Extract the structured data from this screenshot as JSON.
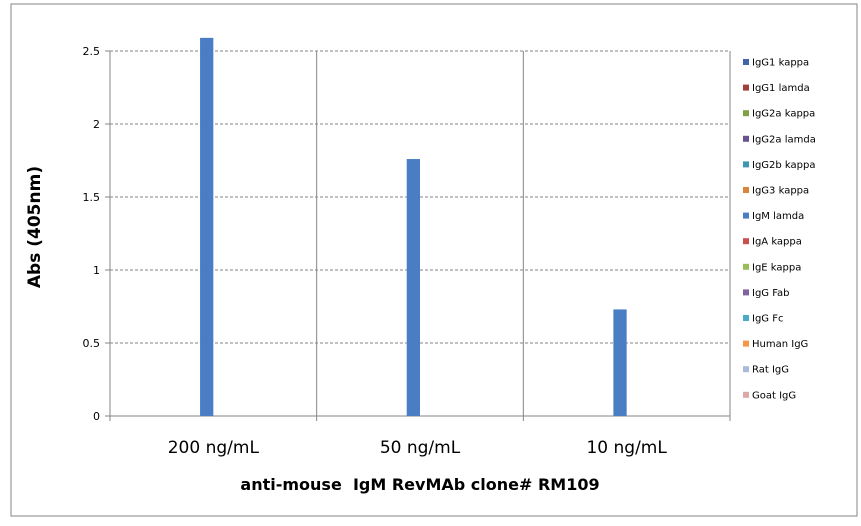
{
  "chart_data": {
    "type": "bar",
    "title": "",
    "xlabel": "anti-mouse  IgM RevMAb clone# RM109",
    "ylabel": "Abs (405nm)",
    "ylim": [
      0,
      2.5
    ],
    "yticks": [
      "0",
      "0.5",
      "1",
      "1.5",
      "2",
      "2.5"
    ],
    "grid": true,
    "legend_position": "right",
    "categories": [
      "200 ng/mL",
      "50 ng/mL",
      "10 ng/mL"
    ],
    "series": [
      {
        "name": "IgG1 kappa",
        "color": "#3f64a8",
        "values": [
          0,
          0,
          0
        ]
      },
      {
        "name": "IgG1 lamda",
        "color": "#a03f3c",
        "values": [
          0,
          0,
          0
        ]
      },
      {
        "name": "IgG2a kappa",
        "color": "#80a046",
        "values": [
          0,
          0,
          0
        ]
      },
      {
        "name": "IgG2a lamda",
        "color": "#6a5290",
        "values": [
          0,
          0,
          0
        ]
      },
      {
        "name": "IgG2b kappa",
        "color": "#3c98ae",
        "values": [
          0,
          0,
          0
        ]
      },
      {
        "name": "IgG3 kappa",
        "color": "#d88539",
        "values": [
          0,
          0,
          0
        ]
      },
      {
        "name": "IgM lamda",
        "color": "#4a7ec4",
        "values": [
          2.59,
          1.76,
          0.73
        ]
      },
      {
        "name": "IgA kappa",
        "color": "#c8504d",
        "values": [
          0,
          0,
          0
        ]
      },
      {
        "name": "IgE kappa",
        "color": "#9bbb59",
        "values": [
          0,
          0,
          0
        ]
      },
      {
        "name": "IgG Fab",
        "color": "#8064a2",
        "values": [
          0,
          0,
          0
        ]
      },
      {
        "name": "IgG Fc",
        "color": "#4bacc6",
        "values": [
          0,
          0,
          0
        ]
      },
      {
        "name": "Human IgG",
        "color": "#f79646",
        "values": [
          0,
          0,
          0
        ]
      },
      {
        "name": "Rat IgG",
        "color": "#aabbd9",
        "values": [
          0,
          0,
          0
        ]
      },
      {
        "name": "Goat IgG",
        "color": "#dba9a8",
        "values": [
          0,
          0,
          0
        ]
      }
    ]
  }
}
